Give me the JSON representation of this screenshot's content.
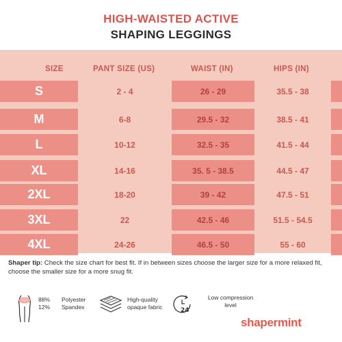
{
  "title": {
    "line1": "HIGH-WAISTED ACTIVE",
    "line2": "SHAPING LEGGINGS"
  },
  "headers": {
    "size": "SIZE",
    "pant": "PANT SIZE (US)",
    "waist": "WAIST (IN)",
    "hips": "HIPS (IN)"
  },
  "rows": [
    {
      "size": "S",
      "pant": "2 - 4",
      "waist": "26 - 29",
      "hips": "35.5 - 38"
    },
    {
      "size": "M",
      "pant": "6-8",
      "waist": "29.5 - 32",
      "hips": "38.5 - 41"
    },
    {
      "size": "L",
      "pant": "10-12",
      "waist": "32.5 - 35",
      "hips": "41.5 - 44"
    },
    {
      "size": "XL",
      "pant": "14-16",
      "waist": "35. 5 - 38.5",
      "hips": "44.5 - 47"
    },
    {
      "size": "2XL",
      "pant": "18-20",
      "waist": "39 - 42",
      "hips": "47.5 - 51"
    },
    {
      "size": "3XL",
      "pant": "22",
      "waist": "42.5 - 46",
      "hips": "51.5 - 54.5"
    },
    {
      "size": "4XL",
      "pant": "24-26",
      "waist": "46.5 - 50",
      "hips": "55 - 60"
    }
  ],
  "tip": {
    "label": "Shaper tip:",
    "text": " Check the size chart for best fit. If in between sizes choose the larger size for a more relaxed fit, choose the smaller size for a more snug fit."
  },
  "features": {
    "pct1": "88%",
    "pct2": "12%",
    "mat1": "Polyester",
    "mat2": "Spandex",
    "fabric1": "High-quality",
    "fabric2": "opaque fabric",
    "compression1": "Low compression",
    "compression2": "level",
    "clock_number": "24",
    "icons": [
      "body-silhouette-icon",
      "fabric-layers-icon",
      "clock-24-icon"
    ]
  },
  "brand": "shapermint",
  "colors": {
    "accent": "#d9534f",
    "band_light": "#f6cbbf",
    "band_dark": "#ec8f86",
    "logo": "#e25a4c"
  }
}
